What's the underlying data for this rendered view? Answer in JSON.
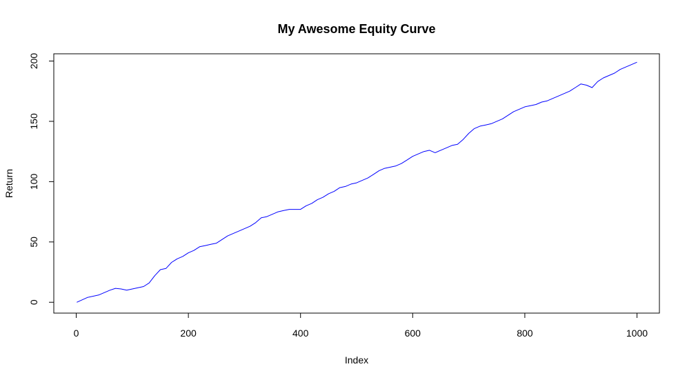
{
  "chart_data": {
    "type": "line",
    "title": "My Awesome Equity Curve",
    "xlabel": "Index",
    "ylabel": "Return",
    "xlim": [
      -40,
      1040
    ],
    "ylim": [
      -9,
      206
    ],
    "x_ticks": [
      0,
      200,
      400,
      600,
      800,
      1000
    ],
    "y_ticks": [
      0,
      50,
      100,
      150,
      200
    ],
    "x_tick_labels": [
      "0",
      "200",
      "400",
      "600",
      "800",
      "1000"
    ],
    "y_tick_labels": [
      "0",
      "50",
      "100",
      "150",
      "200"
    ],
    "grid": false,
    "legend": "none",
    "series": [
      {
        "color": "#0000ff",
        "x": [
          1,
          20,
          40,
          60,
          70,
          80,
          90,
          100,
          110,
          120,
          130,
          140,
          150,
          160,
          170,
          180,
          190,
          200,
          210,
          220,
          230,
          240,
          250,
          260,
          270,
          280,
          290,
          300,
          310,
          320,
          330,
          340,
          350,
          360,
          370,
          380,
          390,
          400,
          410,
          420,
          430,
          440,
          450,
          460,
          470,
          480,
          490,
          500,
          510,
          520,
          530,
          540,
          550,
          560,
          570,
          580,
          590,
          600,
          610,
          620,
          630,
          640,
          650,
          660,
          670,
          680,
          690,
          700,
          710,
          720,
          730,
          740,
          750,
          760,
          770,
          780,
          790,
          800,
          810,
          820,
          830,
          840,
          850,
          860,
          870,
          880,
          890,
          900,
          910,
          920,
          930,
          940,
          950,
          960,
          970,
          980,
          990,
          1000
        ],
        "y": [
          0,
          4,
          6,
          10,
          11.5,
          11,
          10,
          11,
          12,
          13,
          16,
          22,
          27,
          28,
          33,
          36,
          38,
          41,
          43,
          46,
          47,
          48,
          49,
          52,
          55,
          57,
          59,
          61,
          63,
          66,
          70,
          71,
          73,
          75,
          76,
          77,
          77,
          77,
          80,
          82,
          85,
          87,
          90,
          92,
          95,
          96,
          98,
          99,
          101,
          103,
          106,
          109,
          111,
          112,
          113,
          115,
          118,
          121,
          123,
          125,
          126,
          124,
          126,
          128,
          130,
          131,
          135,
          140,
          144,
          146,
          147,
          148,
          150,
          152,
          155,
          158,
          160,
          162,
          163,
          164,
          166,
          167,
          169,
          171,
          173,
          175,
          178,
          181,
          180,
          178,
          183,
          186,
          188,
          190,
          193,
          195,
          197,
          199
        ]
      }
    ]
  }
}
